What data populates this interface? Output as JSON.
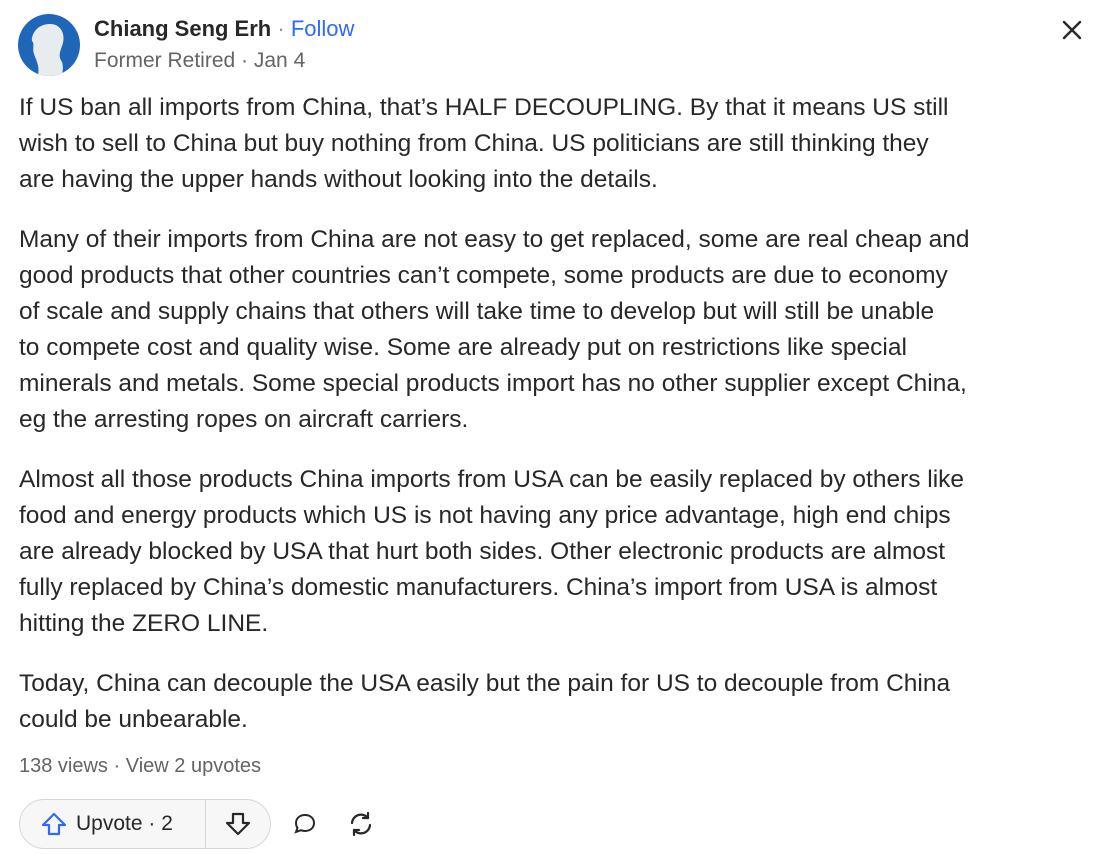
{
  "author": {
    "name": "Chiang Seng Erh",
    "separator": " · ",
    "follow": "Follow",
    "credential": "Former Retired",
    "date": "Jan 4"
  },
  "paragraphs": [
    [
      "If US ban all imports from China, that’s HALF DECOUPLING. By that it means US still",
      "wish to sell to China but buy nothing from China. US politicians are still thinking they",
      "are having the upper hands without looking into the details."
    ],
    [
      "Many of their imports from China are not easy to get replaced, some are real cheap and",
      "good products that other countries can’t compete, some products are due to economy",
      "of scale and supply chains that others will take time to develop but will still be unable",
      "to compete cost and quality wise. Some are already put on restrictions like special",
      "minerals and metals. Some special products import has no other supplier except China,",
      "eg the arresting ropes on aircraft carriers."
    ],
    [
      "Almost all those products China imports from USA can be easily replaced by others like",
      "food and energy products which US is not having any price advantage, high end chips",
      "are already blocked by USA that hurt both sides. Other electronic products are almost",
      "fully replaced by China’s domestic manufacturers. China’s import from USA is almost",
      "hitting the ZERO LINE."
    ],
    [
      "Today, China can decouple the USA easily but the pain for US to decouple from China",
      "could be unbearable."
    ]
  ],
  "stats": {
    "views": "138 views",
    "separator": " · ",
    "upvotes_link": "View 2 upvotes"
  },
  "actions": {
    "upvote": "Upvote · 2",
    "icons": [
      "arrow-up-icon",
      "arrow-down-icon",
      "comment-icon",
      "share-icon",
      "close-icon"
    ]
  },
  "colors": {
    "accent": "#2e69ff",
    "avatar": "#1f66b8"
  }
}
